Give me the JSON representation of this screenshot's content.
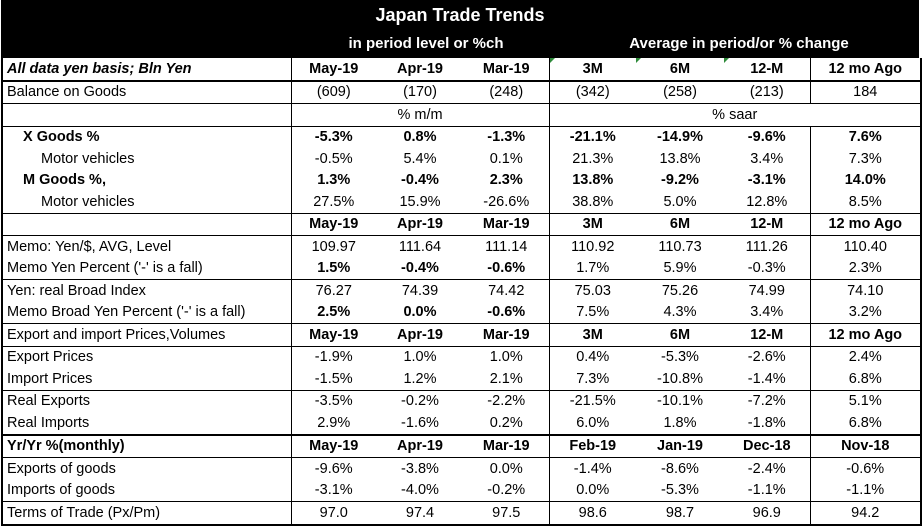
{
  "title": "Japan Trade Trends",
  "subtitle_left": "in period level or %ch",
  "subtitle_right": "Average in period/or % change",
  "header": {
    "label": "All data yen basis; Bln Yen",
    "cols": [
      "May-19",
      "Apr-19",
      "Mar-19",
      "3M",
      "6M",
      "12-M",
      "12 mo Ago"
    ]
  },
  "balance": {
    "label": "Balance on Goods",
    "values": [
      "(609)",
      "(170)",
      "(248)",
      "(342)",
      "(258)",
      "(213)",
      "184"
    ]
  },
  "units": {
    "mm": "% m/m",
    "saar": "% saar"
  },
  "x_goods": {
    "label": "X Goods %",
    "values": [
      "-5.3%",
      "0.8%",
      "-1.3%",
      "-21.1%",
      "-14.9%",
      "-9.6%",
      "7.6%"
    ]
  },
  "x_motor": {
    "label": "Motor vehicles",
    "values": [
      "-0.5%",
      "5.4%",
      "0.1%",
      "21.3%",
      "13.8%",
      "3.4%",
      "7.3%"
    ]
  },
  "m_goods": {
    "label": "M Goods %,",
    "values": [
      "1.3%",
      "-0.4%",
      "2.3%",
      "13.8%",
      "-9.2%",
      "-3.1%",
      "14.0%"
    ]
  },
  "m_motor": {
    "label": "Motor vehicles",
    "values": [
      "27.5%",
      "15.9%",
      "-26.6%",
      "38.8%",
      "5.0%",
      "12.8%",
      "8.5%"
    ]
  },
  "header2": {
    "cols": [
      "May-19",
      "Apr-19",
      "Mar-19",
      "3M",
      "6M",
      "12-M",
      "12 mo Ago"
    ]
  },
  "memo_yen": {
    "label": "Memo: Yen/$, AVG, Level",
    "values": [
      "109.97",
      "111.64",
      "111.14",
      "110.92",
      "110.73",
      "111.26",
      "110.40"
    ]
  },
  "memo_yen_pct": {
    "label": "Memo Yen Percent ('-' is a fall)",
    "values": [
      "1.5%",
      "-0.4%",
      "-0.6%",
      "1.7%",
      "5.9%",
      "-0.3%",
      "2.3%"
    ]
  },
  "broad": {
    "label": "Yen: real Broad Index",
    "values": [
      "76.27",
      "74.39",
      "74.42",
      "75.03",
      "75.26",
      "74.99",
      "74.10"
    ]
  },
  "broad_pct": {
    "label": "Memo Broad Yen Percent ('-' is a fall)",
    "values": [
      "2.5%",
      "0.0%",
      "-0.6%",
      "7.5%",
      "4.3%",
      "3.4%",
      "3.2%"
    ]
  },
  "header3": {
    "label": "Export and import Prices,Volumes",
    "cols": [
      "May-19",
      "Apr-19",
      "Mar-19",
      "3M",
      "6M",
      "12-M",
      "12 mo Ago"
    ]
  },
  "export_prices": {
    "label": "Export Prices",
    "values": [
      "-1.9%",
      "1.0%",
      "1.0%",
      "0.4%",
      "-5.3%",
      "-2.6%",
      "2.4%"
    ]
  },
  "import_prices": {
    "label": "Import Prices",
    "values": [
      "-1.5%",
      "1.2%",
      "2.1%",
      "7.3%",
      "-10.8%",
      "-1.4%",
      "6.8%"
    ]
  },
  "real_exports": {
    "label": "Real Exports",
    "values": [
      "-3.5%",
      "-0.2%",
      "-2.2%",
      "-21.5%",
      "-10.1%",
      "-7.2%",
      "5.1%"
    ]
  },
  "real_imports": {
    "label": "Real Imports",
    "values": [
      "2.9%",
      "-1.6%",
      "0.2%",
      "6.0%",
      "1.8%",
      "-1.8%",
      "6.8%"
    ]
  },
  "header4": {
    "label": "Yr/Yr %(monthly)",
    "cols": [
      "May-19",
      "Apr-19",
      "Mar-19",
      "Feb-19",
      "Jan-19",
      "Dec-18",
      "Nov-18"
    ]
  },
  "exports_goods": {
    "label": "Exports of goods",
    "values": [
      "-9.6%",
      "-3.8%",
      "0.0%",
      "-1.4%",
      "-8.6%",
      "-2.4%",
      "-0.6%"
    ]
  },
  "imports_goods": {
    "label": "Imports of goods",
    "values": [
      "-3.1%",
      "-4.0%",
      "-0.2%",
      "0.0%",
      "-5.3%",
      "-1.1%",
      "-1.1%"
    ]
  },
  "tot": {
    "label": "Terms of Trade (Px/Pm)",
    "values": [
      "97.0",
      "97.4",
      "97.5",
      "98.6",
      "98.7",
      "96.9",
      "94.2"
    ]
  }
}
